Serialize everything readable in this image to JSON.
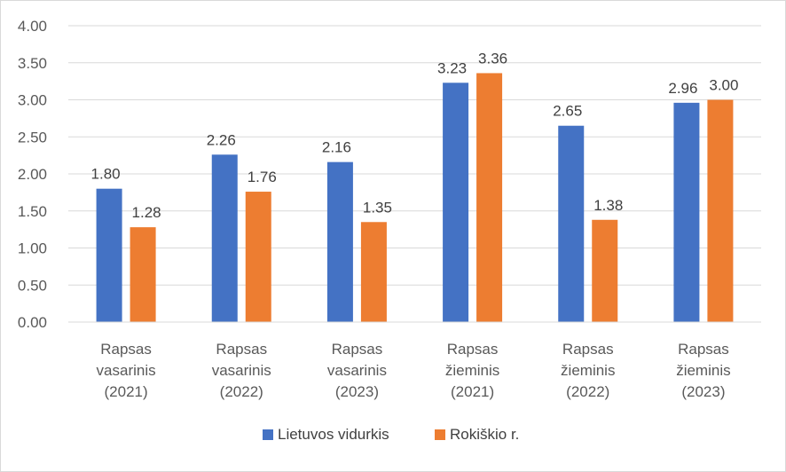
{
  "chart_data": {
    "type": "bar",
    "categories": [
      [
        "Rapsas",
        "vasarinis",
        "(2021)"
      ],
      [
        "Rapsas",
        "vasarinis",
        "(2022)"
      ],
      [
        "Rapsas",
        "vasarinis",
        "(2023)"
      ],
      [
        "Rapsas",
        "žieminis",
        "(2021)"
      ],
      [
        "Rapsas",
        "žieminis",
        "(2022)"
      ],
      [
        "Rapsas",
        "žieminis",
        "(2023)"
      ]
    ],
    "series": [
      {
        "name": "Lietuvos vidurkis",
        "color": "#4472c4",
        "values": [
          1.8,
          2.26,
          2.16,
          3.23,
          2.65,
          2.96
        ],
        "labels": [
          "1.80",
          "2.26",
          "2.16",
          "3.23",
          "2.65",
          "2.96"
        ]
      },
      {
        "name": "Rokiškio r.",
        "color": "#ed7d31",
        "values": [
          1.28,
          1.76,
          1.35,
          3.36,
          1.38,
          3.0
        ],
        "labels": [
          "1.28",
          "1.76",
          "1.35",
          "3.36",
          "1.38",
          "3.00"
        ]
      }
    ],
    "ylim": [
      0,
      4
    ],
    "yticks": [
      "0.00",
      "0.50",
      "1.00",
      "1.50",
      "2.00",
      "2.50",
      "3.00",
      "3.50",
      "4.00"
    ],
    "grid": true,
    "legend": "bottom"
  }
}
